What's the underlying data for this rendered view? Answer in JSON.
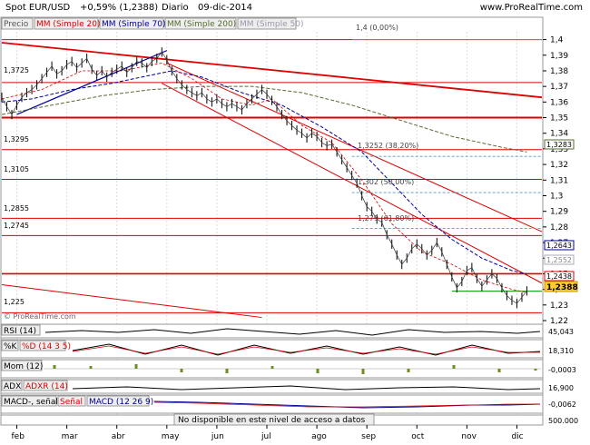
{
  "header": {
    "symbol": "Spot EUR/USD",
    "change": "+0,59% (1,2388)",
    "period": "Diario",
    "date": "09-dic-2014",
    "site": "www.ProRealTime.com"
  },
  "legend": {
    "precio": "Precio",
    "ma20": "MM (Simple 20)",
    "ma70": "MM (Simple 70)",
    "ma200": "MM (Simple 200)",
    "ma50": "MM (Simple 50)",
    "watermark": "© ProRealTime.com"
  },
  "fib": {
    "f0": "1,4 (0,00%)",
    "f38": "1,3252 (38,20%)",
    "f50": "1,302 (50,00%)",
    "f618": "1,279 (61,80%)"
  },
  "level_labels": {
    "l13725": "1,3725",
    "l13295": "1,3295",
    "l13105": "1,3105",
    "l12855": "1,2855",
    "l12745": "1,2745",
    "l1225": "1,225"
  },
  "price_badges": {
    "b13283": "1,3283",
    "b12643": "1,2643",
    "b12552": "1,2552",
    "b12438": "1,2438",
    "b12388": "1,2388"
  },
  "indicators": {
    "rsi": {
      "label": "RSI (14)",
      "value": "45,043"
    },
    "stoch": {
      "label": "%K",
      "label2": "%D (14 3 5)",
      "value": "18,310"
    },
    "mom": {
      "label": "Mom (12)",
      "value": "-0,0003"
    },
    "adx": {
      "label": "ADX",
      "label2": "ADXR (14)",
      "value": "16,900"
    },
    "macd": {
      "label": "MACD-, señal",
      "label2": "Señal",
      "label3": "MACD (12 26 9)",
      "value": "-0,0062"
    },
    "volume": {
      "notice": "No disponible en este nivel de acceso a datos",
      "value": "500.000"
    }
  },
  "chart_data": {
    "type": "line",
    "title": "Spot EUR/USD",
    "y_ticks": [
      "1,4",
      "1,39",
      "1,38",
      "1,37",
      "1,36",
      "1,35",
      "1,34",
      "1,33",
      "1,32",
      "1,31",
      "1,3",
      "1,29",
      "1,28",
      "1,27",
      "1,26",
      "1,25",
      "1,24",
      "1,23",
      "1,22"
    ],
    "ylim": [
      1.22,
      1.405
    ],
    "x_ticks": [
      "feb",
      "mar",
      "abr",
      "may",
      "jun",
      "jul",
      "ago",
      "sep",
      "oct",
      "nov",
      "dic"
    ],
    "x_tick_pos": [
      0.3,
      1.3,
      2.3,
      3.3,
      4.3,
      5.3,
      6.3,
      7.3,
      8.3,
      9.3,
      10.3
    ],
    "xlim": [
      0,
      10.8
    ],
    "close": [
      [
        0.0,
        1.363
      ],
      [
        0.1,
        1.357
      ],
      [
        0.2,
        1.352
      ],
      [
        0.3,
        1.358
      ],
      [
        0.4,
        1.363
      ],
      [
        0.5,
        1.366
      ],
      [
        0.6,
        1.368
      ],
      [
        0.7,
        1.371
      ],
      [
        0.8,
        1.375
      ],
      [
        0.9,
        1.379
      ],
      [
        1.0,
        1.383
      ],
      [
        1.1,
        1.378
      ],
      [
        1.2,
        1.38
      ],
      [
        1.3,
        1.384
      ],
      [
        1.4,
        1.386
      ],
      [
        1.5,
        1.382
      ],
      [
        1.6,
        1.385
      ],
      [
        1.7,
        1.388
      ],
      [
        1.8,
        1.381
      ],
      [
        1.9,
        1.377
      ],
      [
        2.0,
        1.38
      ],
      [
        2.1,
        1.376
      ],
      [
        2.2,
        1.379
      ],
      [
        2.3,
        1.381
      ],
      [
        2.4,
        1.383
      ],
      [
        2.5,
        1.379
      ],
      [
        2.6,
        1.382
      ],
      [
        2.7,
        1.386
      ],
      [
        2.8,
        1.385
      ],
      [
        2.9,
        1.382
      ],
      [
        3.0,
        1.386
      ],
      [
        3.1,
        1.388
      ],
      [
        3.2,
        1.392
      ],
      [
        3.3,
        1.387
      ],
      [
        3.4,
        1.38
      ],
      [
        3.5,
        1.375
      ],
      [
        3.6,
        1.371
      ],
      [
        3.7,
        1.368
      ],
      [
        3.8,
        1.366
      ],
      [
        3.9,
        1.364
      ],
      [
        4.0,
        1.366
      ],
      [
        4.1,
        1.362
      ],
      [
        4.2,
        1.36
      ],
      [
        4.3,
        1.362
      ],
      [
        4.4,
        1.359
      ],
      [
        4.5,
        1.357
      ],
      [
        4.6,
        1.359
      ],
      [
        4.7,
        1.357
      ],
      [
        4.8,
        1.355
      ],
      [
        4.9,
        1.359
      ],
      [
        5.0,
        1.362
      ],
      [
        5.1,
        1.365
      ],
      [
        5.2,
        1.368
      ],
      [
        5.3,
        1.365
      ],
      [
        5.4,
        1.361
      ],
      [
        5.5,
        1.357
      ],
      [
        5.6,
        1.352
      ],
      [
        5.7,
        1.348
      ],
      [
        5.8,
        1.345
      ],
      [
        5.9,
        1.342
      ],
      [
        6.0,
        1.34
      ],
      [
        6.1,
        1.337
      ],
      [
        6.2,
        1.34
      ],
      [
        6.3,
        1.338
      ],
      [
        6.4,
        1.334
      ],
      [
        6.5,
        1.332
      ],
      [
        6.6,
        1.333
      ],
      [
        6.7,
        1.328
      ],
      [
        6.8,
        1.323
      ],
      [
        6.9,
        1.318
      ],
      [
        7.0,
        1.313
      ],
      [
        7.1,
        1.308
      ],
      [
        7.2,
        1.3
      ],
      [
        7.3,
        1.293
      ],
      [
        7.4,
        1.29
      ],
      [
        7.5,
        1.285
      ],
      [
        7.6,
        1.283
      ],
      [
        7.7,
        1.275
      ],
      [
        7.8,
        1.269
      ],
      [
        7.9,
        1.262
      ],
      [
        8.0,
        1.256
      ],
      [
        8.1,
        1.26
      ],
      [
        8.2,
        1.266
      ],
      [
        8.3,
        1.269
      ],
      [
        8.4,
        1.266
      ],
      [
        8.5,
        1.262
      ],
      [
        8.6,
        1.265
      ],
      [
        8.7,
        1.27
      ],
      [
        8.8,
        1.264
      ],
      [
        8.9,
        1.256
      ],
      [
        9.0,
        1.248
      ],
      [
        9.1,
        1.241
      ],
      [
        9.2,
        1.245
      ],
      [
        9.3,
        1.252
      ],
      [
        9.4,
        1.254
      ],
      [
        9.5,
        1.247
      ],
      [
        9.6,
        1.242
      ],
      [
        9.7,
        1.246
      ],
      [
        9.8,
        1.25
      ],
      [
        9.9,
        1.247
      ],
      [
        10.0,
        1.241
      ],
      [
        10.1,
        1.236
      ],
      [
        10.2,
        1.233
      ],
      [
        10.3,
        1.231
      ],
      [
        10.4,
        1.235
      ],
      [
        10.5,
        1.239
      ]
    ],
    "ma20": [
      [
        0.0,
        1.362
      ],
      [
        0.8,
        1.368
      ],
      [
        1.6,
        1.38
      ],
      [
        2.4,
        1.38
      ],
      [
        3.2,
        1.385
      ],
      [
        3.8,
        1.375
      ],
      [
        4.4,
        1.362
      ],
      [
        5.0,
        1.358
      ],
      [
        5.4,
        1.362
      ],
      [
        6.0,
        1.345
      ],
      [
        6.6,
        1.334
      ],
      [
        7.2,
        1.31
      ],
      [
        7.8,
        1.282
      ],
      [
        8.4,
        1.264
      ],
      [
        9.0,
        1.256
      ],
      [
        9.6,
        1.246
      ],
      [
        10.2,
        1.24
      ],
      [
        10.5,
        1.238
      ]
    ],
    "ma70": [
      [
        0.0,
        1.36
      ],
      [
        0.6,
        1.362
      ],
      [
        1.4,
        1.368
      ],
      [
        2.2,
        1.372
      ],
      [
        2.8,
        1.376
      ],
      [
        3.4,
        1.38
      ],
      [
        4.0,
        1.376
      ],
      [
        4.8,
        1.366
      ],
      [
        5.6,
        1.358
      ],
      [
        6.4,
        1.344
      ],
      [
        7.2,
        1.328
      ],
      [
        7.8,
        1.308
      ],
      [
        8.4,
        1.288
      ],
      [
        9.0,
        1.272
      ],
      [
        9.6,
        1.26
      ],
      [
        10.2,
        1.252
      ],
      [
        10.5,
        1.25
      ]
    ],
    "ma200": [
      [
        0.0,
        1.352
      ],
      [
        1.0,
        1.358
      ],
      [
        2.0,
        1.364
      ],
      [
        3.0,
        1.368
      ],
      [
        4.0,
        1.37
      ],
      [
        5.0,
        1.37
      ],
      [
        6.0,
        1.366
      ],
      [
        7.0,
        1.358
      ],
      [
        8.0,
        1.348
      ],
      [
        9.0,
        1.338
      ],
      [
        10.0,
        1.331
      ],
      [
        10.5,
        1.328
      ]
    ],
    "resistance_lines": [
      {
        "from": [
          0.0,
          1.398
        ],
        "to": [
          10.8,
          1.363
        ]
      },
      {
        "from": [
          3.2,
          1.372
        ],
        "to": [
          10.8,
          1.244
        ]
      },
      {
        "from": [
          3.3,
          1.385
        ],
        "to": [
          10.8,
          1.277
        ]
      },
      {
        "from": [
          0.0,
          1.243
        ],
        "to": [
          5.2,
          1.222
        ]
      }
    ],
    "horizontal_levels": [
      1.4,
      1.3725,
      1.3295,
      1.3105,
      1.2855,
      1.2745,
      1.25,
      1.225
    ],
    "fibonacci": [
      1.4,
      1.3252,
      1.302,
      1.279
    ]
  }
}
